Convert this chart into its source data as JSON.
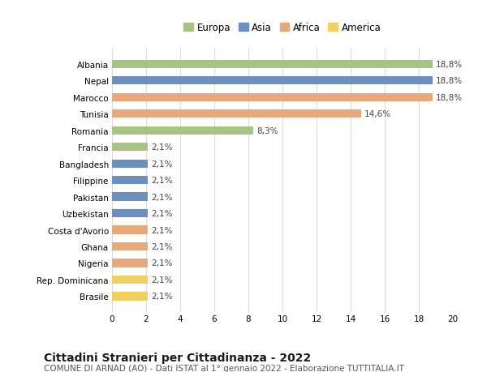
{
  "categories": [
    "Albania",
    "Nepal",
    "Marocco",
    "Tunisia",
    "Romania",
    "Francia",
    "Bangladesh",
    "Filippine",
    "Pakistan",
    "Uzbekistan",
    "Costa d'Avorio",
    "Ghana",
    "Nigeria",
    "Rep. Dominicana",
    "Brasile"
  ],
  "values": [
    18.8,
    18.8,
    18.8,
    14.6,
    8.3,
    2.1,
    2.1,
    2.1,
    2.1,
    2.1,
    2.1,
    2.1,
    2.1,
    2.1,
    2.1
  ],
  "labels": [
    "18,8%",
    "18,8%",
    "18,8%",
    "14,6%",
    "8,3%",
    "2,1%",
    "2,1%",
    "2,1%",
    "2,1%",
    "2,1%",
    "2,1%",
    "2,1%",
    "2,1%",
    "2,1%",
    "2,1%"
  ],
  "colors": [
    "#a8c484",
    "#6b8fbf",
    "#e8a87c",
    "#e8a87c",
    "#a8c484",
    "#a8c484",
    "#6b8fbf",
    "#6b8fbf",
    "#6b8fbf",
    "#6b8fbf",
    "#e8a87c",
    "#e8a87c",
    "#e8a87c",
    "#f0d060",
    "#f0d060"
  ],
  "legend_labels": [
    "Europa",
    "Asia",
    "Africa",
    "America"
  ],
  "legend_colors": [
    "#a8c484",
    "#6b8fbf",
    "#e8a87c",
    "#f0d060"
  ],
  "title": "Cittadini Stranieri per Cittadinanza - 2022",
  "subtitle": "COMUNE DI ARNAD (AO) - Dati ISTAT al 1° gennaio 2022 - Elaborazione TUTTITALIA.IT",
  "xlim": [
    0,
    20
  ],
  "xticks": [
    0,
    2,
    4,
    6,
    8,
    10,
    12,
    14,
    16,
    18,
    20
  ],
  "bar_height": 0.5,
  "background_color": "#ffffff",
  "grid_color": "#dddddd",
  "label_fontsize": 7.5,
  "title_fontsize": 10,
  "subtitle_fontsize": 7.5,
  "tick_fontsize": 7.5,
  "legend_fontsize": 8.5
}
